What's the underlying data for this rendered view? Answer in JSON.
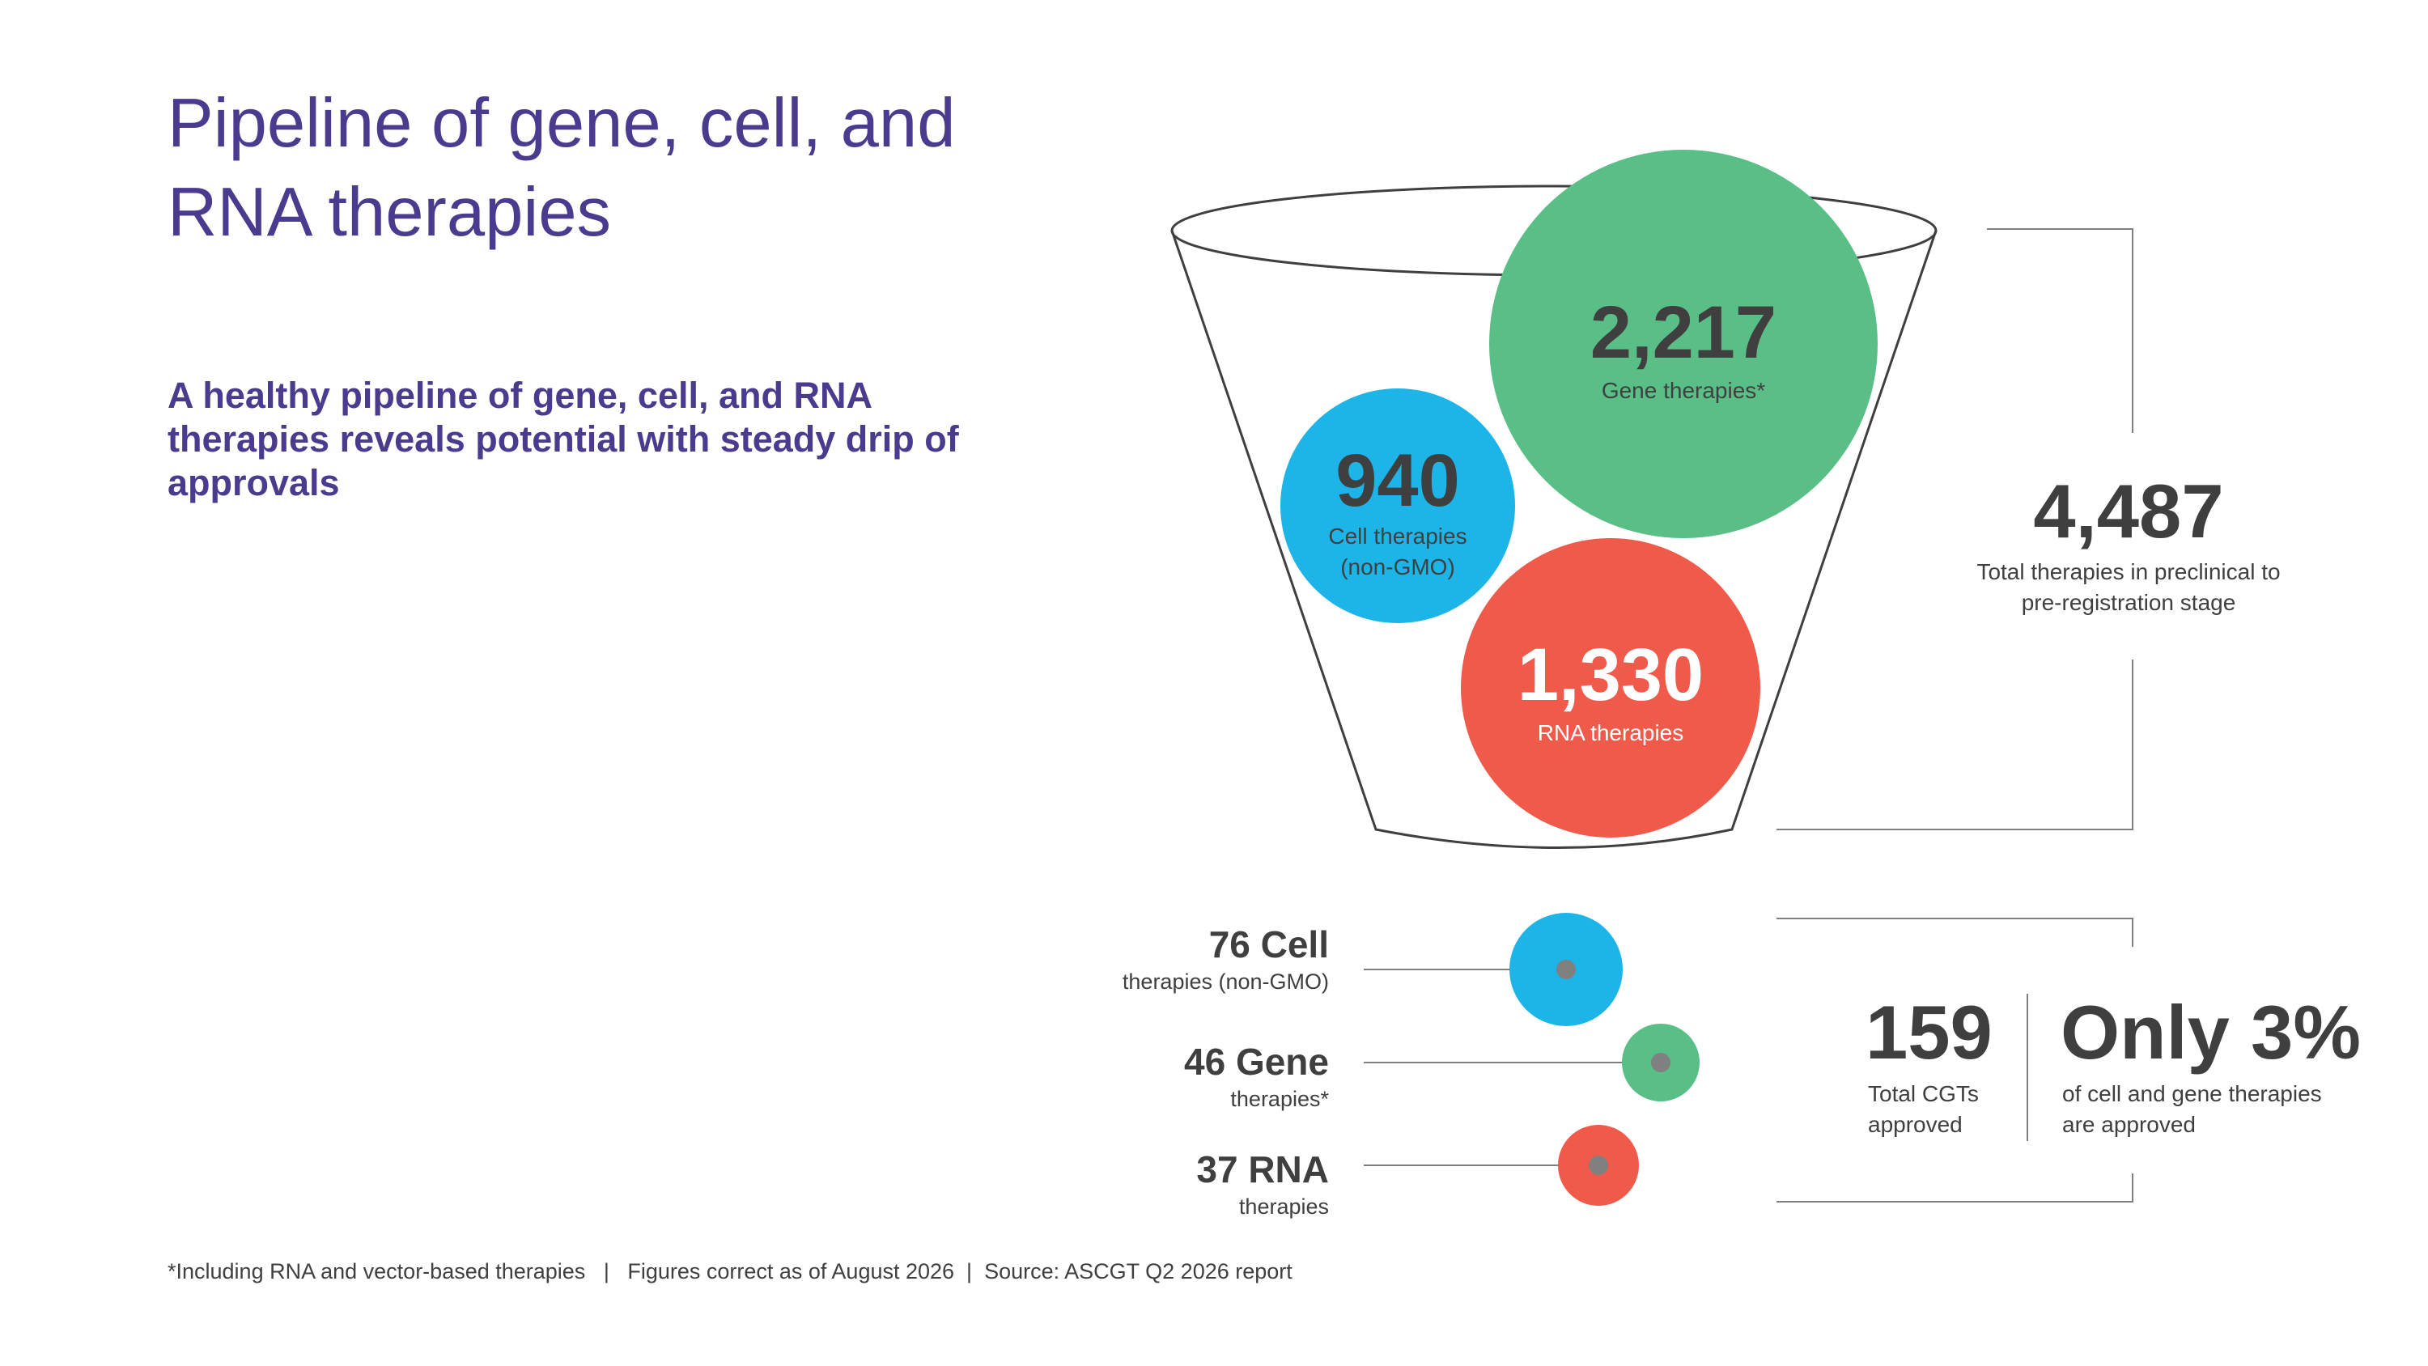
{
  "title": "Pipeline of gene, cell, and RNA therapies",
  "subtitle": "A healthy pipeline of gene, cell, and RNA therapies reveals potential with steady drip of approvals",
  "colors": {
    "title": "#4b3b8f",
    "cell": "#1db4e8",
    "gene": "#5abf87",
    "rna": "#f05a4a",
    "text": "#3f3f3f",
    "line": "#7f7f7f"
  },
  "pipeline": {
    "gene": {
      "value": "2,217",
      "label": "Gene therapies*"
    },
    "cell": {
      "value": "940",
      "label_line1": "Cell therapies",
      "label_line2": "(non-GMO)"
    },
    "rna": {
      "value": "1,330",
      "label": "RNA therapies"
    },
    "total": {
      "value": "4,487",
      "label_line1": "Total therapies in preclinical to",
      "label_line2": "pre-registration stage"
    }
  },
  "approved": {
    "cell": {
      "value": "76 Cell",
      "label": "therapies (non-GMO)"
    },
    "gene": {
      "value": "46 Gene",
      "label": "therapies*"
    },
    "rna": {
      "value": "37 RNA",
      "label": "therapies"
    },
    "total": {
      "value": "159",
      "label_line1": "Total CGTs",
      "label_line2": "approved"
    },
    "share": {
      "value": "Only 3%",
      "label_line1": "of cell and gene therapies",
      "label_line2": "are approved"
    }
  },
  "footnote": "*Including RNA and vector-based therapies   |   Figures correct as of August 2026  |  Source: ASCGT Q2 2026 report"
}
